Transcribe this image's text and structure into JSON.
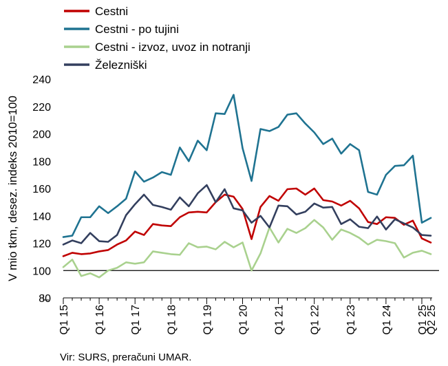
{
  "chart_data": {
    "type": "line",
    "ylabel": "V mio tkm, desez. indeks 2010=100",
    "ylim": [
      80,
      240
    ],
    "yticks": [
      80,
      100,
      120,
      140,
      160,
      180,
      200,
      220,
      240
    ],
    "reference_line": 100,
    "x_labels": [
      {
        "index": 0,
        "label": "Q1 15"
      },
      {
        "index": 4,
        "label": "Q1 16"
      },
      {
        "index": 8,
        "label": "Q1 17"
      },
      {
        "index": 12,
        "label": "Q1 18"
      },
      {
        "index": 16,
        "label": "Q1 19"
      },
      {
        "index": 20,
        "label": "Q1 20"
      },
      {
        "index": 24,
        "label": "Q1 21"
      },
      {
        "index": 28,
        "label": "Q1 22"
      },
      {
        "index": 32,
        "label": "Q1 23"
      },
      {
        "index": 36,
        "label": "Q1 24"
      },
      {
        "index": 40,
        "label": "Q1 25"
      },
      {
        "index": 41,
        "label": "Q2 25"
      }
    ],
    "n_points": 42,
    "legend_position": "top-left",
    "source": "Vir: SURS, preračuni UMAR.",
    "series": [
      {
        "name": "Cestni",
        "color": "#c00000",
        "values": [
          110.5,
          113,
          112,
          112.5,
          114,
          115,
          119,
          122,
          128.5,
          126,
          134,
          133,
          132.5,
          139,
          142.5,
          143,
          142.5,
          150,
          155.5,
          154,
          145,
          123,
          146.5,
          154.5,
          151,
          159.5,
          160,
          155.5,
          160,
          151.5,
          150.5,
          147.5,
          151,
          145.5,
          135.5,
          134,
          139,
          138.5,
          133.5,
          136.5,
          123.5,
          120.5
        ]
      },
      {
        "name": "Cestni - po tujini",
        "color": "#1f7391",
        "values": [
          124.5,
          125.5,
          139,
          139,
          147,
          142,
          147,
          152.5,
          172.5,
          165,
          168,
          172,
          170,
          190,
          180,
          195,
          188,
          215,
          214.5,
          228.5,
          189.5,
          165.5,
          203.5,
          202,
          205,
          214,
          215,
          207.5,
          201,
          192.5,
          196.5,
          185.5,
          192.5,
          188,
          157.5,
          155.5,
          170,
          176.5,
          177,
          184,
          135,
          138.5
        ]
      },
      {
        "name": "Cestni - izvoz, uvoz in notranji",
        "color": "#a9d18e",
        "values": [
          102.5,
          108,
          96,
          98,
          95,
          100,
          102,
          106,
          105,
          106,
          114,
          113,
          112,
          111.5,
          120,
          117,
          117.5,
          115.5,
          121,
          117,
          120.5,
          100,
          112.5,
          131.5,
          120.5,
          130.5,
          127.5,
          131,
          137,
          131.5,
          122.5,
          130,
          127.5,
          124,
          119,
          122.5,
          121.5,
          120,
          109.5,
          113,
          114.5,
          112
        ]
      },
      {
        "name": "Železniški",
        "color": "#333f5e",
        "values": [
          119,
          122,
          120,
          127.5,
          121.5,
          121,
          126,
          140.5,
          148.5,
          155.5,
          148,
          146.5,
          144.5,
          153.5,
          147,
          156.5,
          162.5,
          150,
          159.5,
          145.5,
          144,
          135,
          140,
          131.5,
          147.5,
          147,
          141,
          143,
          149,
          146,
          146.5,
          134,
          137.5,
          132,
          131,
          139.5,
          130,
          137.5,
          134.5,
          131.5,
          126,
          125.5
        ]
      }
    ]
  }
}
